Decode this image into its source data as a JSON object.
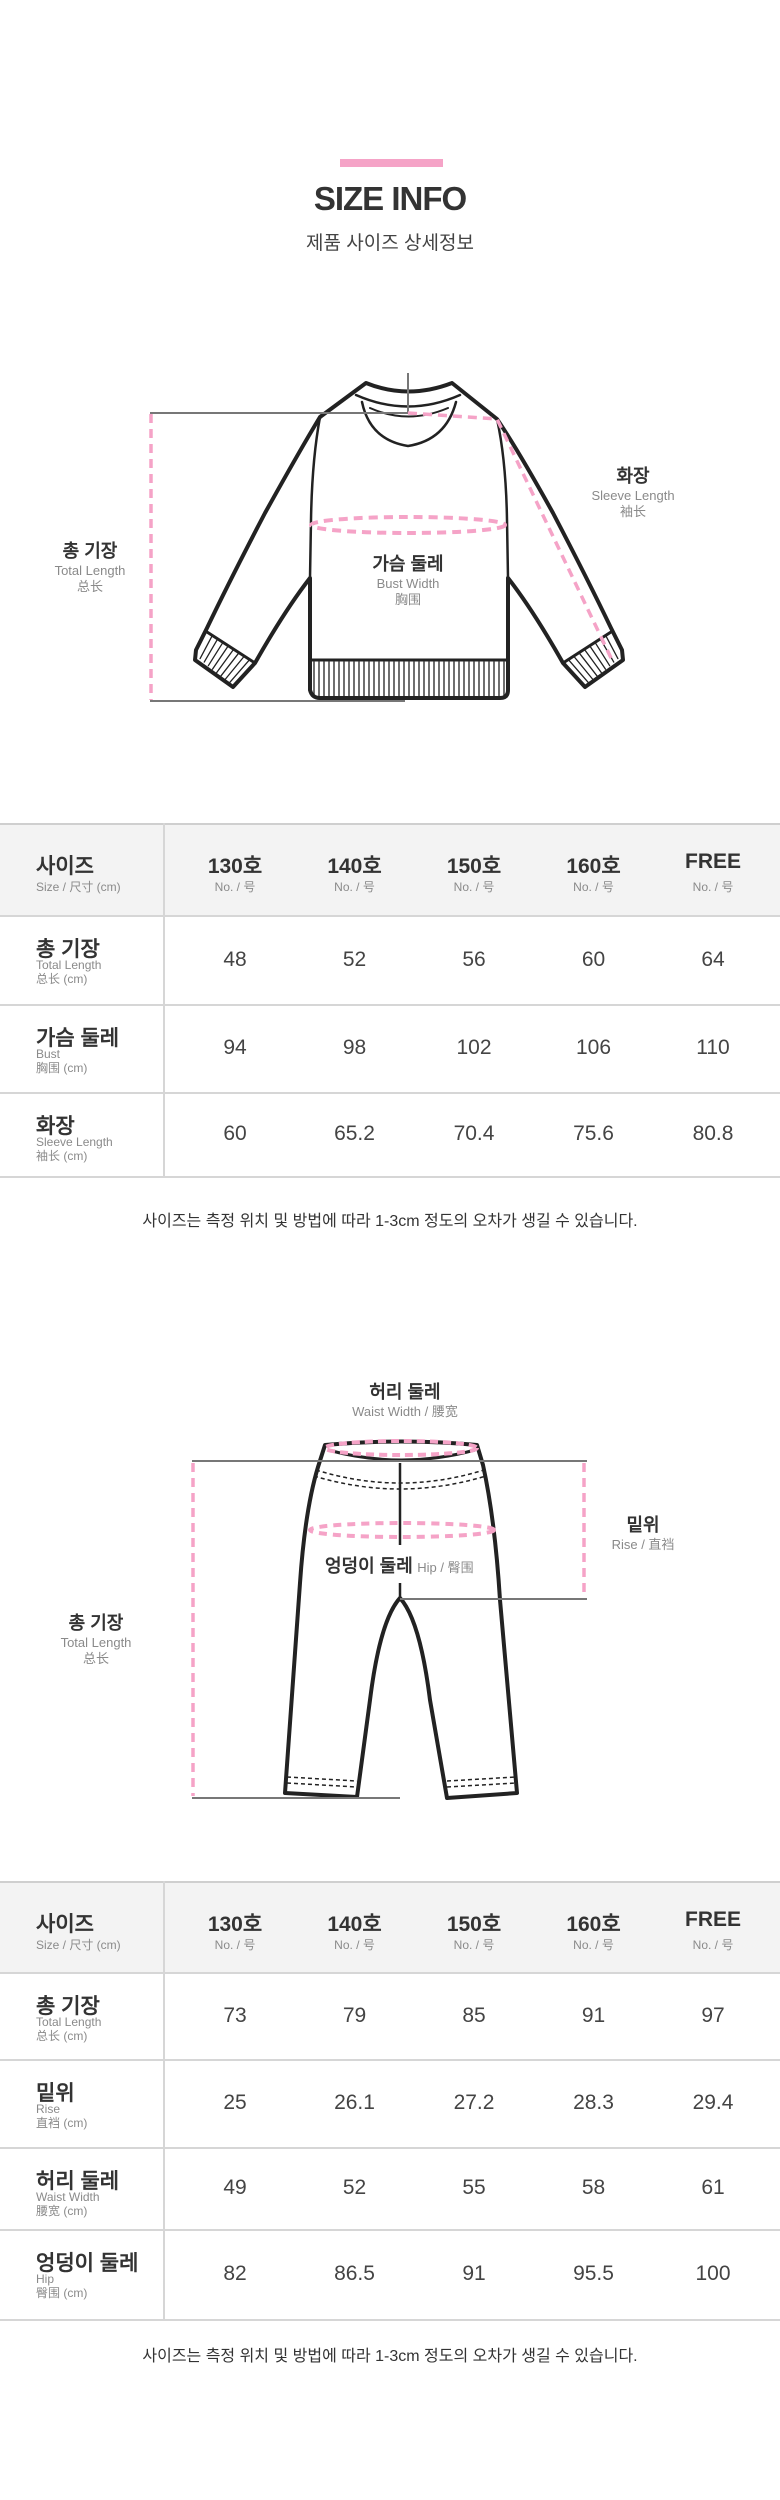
{
  "header": {
    "title": "SIZE INFO",
    "subtitle": "제품 사이즈 상세정보"
  },
  "colors": {
    "accent_pink": "#f5a3c7",
    "text": "#333333",
    "sub_text": "#8a8a8a",
    "header_bg": "#f3f3f3"
  },
  "top_diagram": {
    "total_length": {
      "ko": "총 기장",
      "en": "Total Length",
      "zh": "总长"
    },
    "bust": {
      "ko": "가슴 둘레",
      "en": "Bust Width",
      "zh": "胸围"
    },
    "sleeve": {
      "ko": "화장",
      "en": "Sleeve Length",
      "zh": "袖长"
    }
  },
  "top_table": {
    "header": {
      "label": "사이즈",
      "sub": "Size / 尺寸 (cm)",
      "columns": [
        {
          "size": "130호",
          "sub": "No. / 号"
        },
        {
          "size": "140호",
          "sub": "No. / 号"
        },
        {
          "size": "150호",
          "sub": "No. / 号"
        },
        {
          "size": "160호",
          "sub": "No. / 号"
        },
        {
          "size": "FREE",
          "sub": "No. / 号"
        }
      ]
    },
    "rows": [
      {
        "label": "총 기장",
        "en": "Total Length",
        "zh": "总长 (cm)",
        "values": [
          "48",
          "52",
          "56",
          "60",
          "64"
        ]
      },
      {
        "label": "가슴 둘레",
        "en": "Bust",
        "zh": "胸围 (cm)",
        "values": [
          "94",
          "98",
          "102",
          "106",
          "110"
        ]
      },
      {
        "label": "화장",
        "en": "Sleeve Length",
        "zh": "袖长 (cm)",
        "values": [
          "60",
          "65.2",
          "70.4",
          "75.6",
          "80.8"
        ]
      }
    ],
    "note": "사이즈는 측정 위치 및 방법에 따라 1-3cm 정도의 오차가 생길 수 있습니다."
  },
  "bottom_diagram": {
    "waist": {
      "ko": "허리 둘레",
      "en": "Waist Width / 腰宽"
    },
    "hip": {
      "ko": "엉덩이 둘레",
      "en": "Hip / 臀围"
    },
    "rise": {
      "ko": "밑위",
      "en": "Rise / 直裆"
    },
    "total_length": {
      "ko": "총 기장",
      "en": "Total Length",
      "zh": "总长"
    }
  },
  "bottom_table": {
    "header": {
      "label": "사이즈",
      "sub": "Size / 尺寸 (cm)",
      "columns": [
        {
          "size": "130호",
          "sub": "No. / 号"
        },
        {
          "size": "140호",
          "sub": "No. / 号"
        },
        {
          "size": "150호",
          "sub": "No. / 号"
        },
        {
          "size": "160호",
          "sub": "No. / 号"
        },
        {
          "size": "FREE",
          "sub": "No. / 号"
        }
      ]
    },
    "rows": [
      {
        "label": "총 기장",
        "en": "Total Length",
        "zh": "总长 (cm)",
        "values": [
          "73",
          "79",
          "85",
          "91",
          "97"
        ]
      },
      {
        "label": "밑위",
        "en": "Rise",
        "zh": "直裆 (cm)",
        "values": [
          "25",
          "26.1",
          "27.2",
          "28.3",
          "29.4"
        ]
      },
      {
        "label": "허리 둘레",
        "en": "Waist Width",
        "zh": "腰宽 (cm)",
        "values": [
          "49",
          "52",
          "55",
          "58",
          "61"
        ]
      },
      {
        "label": "엉덩이 둘레",
        "en": "Hip",
        "zh": "臀围 (cm)",
        "values": [
          "82",
          "86.5",
          "91",
          "95.5",
          "100"
        ]
      }
    ],
    "note": "사이즈는 측정 위치 및 방법에 따라 1-3cm 정도의 오차가 생길 수 있습니다."
  }
}
